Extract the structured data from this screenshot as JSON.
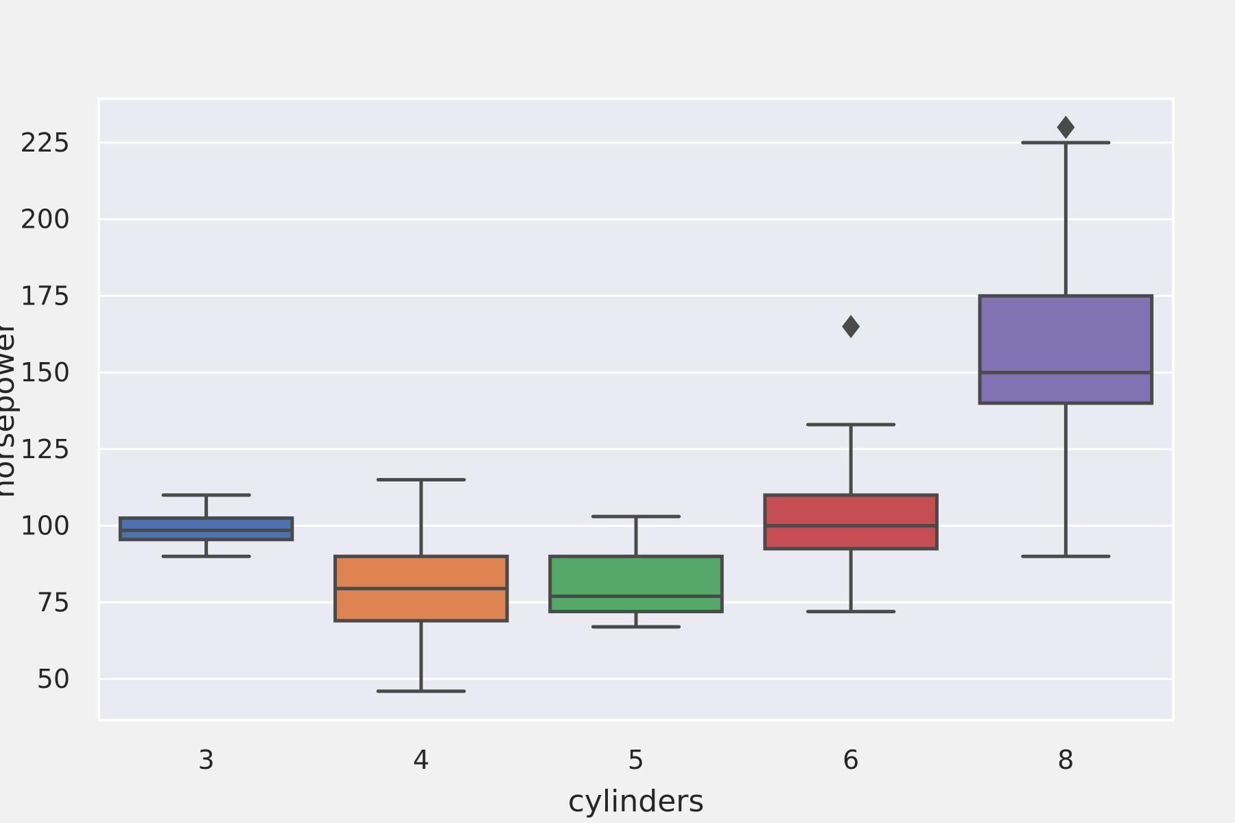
{
  "chart_data": {
    "type": "box",
    "xlabel": "cylinders",
    "ylabel": "horsepower",
    "ylim": [
      36,
      238
    ],
    "yticks": [
      50,
      75,
      100,
      125,
      150,
      175,
      200,
      225
    ],
    "grid": true,
    "categories": [
      "3",
      "4",
      "5",
      "6",
      "8"
    ],
    "boxes": [
      {
        "category": "3",
        "whisker_low": 90,
        "q1": 95.5,
        "median": 98.5,
        "q3": 102.5,
        "whisker_high": 110,
        "outliers": [],
        "color": "#4c72b0"
      },
      {
        "category": "4",
        "whisker_low": 46,
        "q1": 69,
        "median": 79.5,
        "q3": 90,
        "whisker_high": 115,
        "outliers": [],
        "color": "#dd8452"
      },
      {
        "category": "5",
        "whisker_low": 67,
        "q1": 72,
        "median": 77,
        "q3": 90,
        "whisker_high": 103,
        "outliers": [],
        "color": "#55a868"
      },
      {
        "category": "6",
        "whisker_low": 72,
        "q1": 92.5,
        "median": 100,
        "q3": 110,
        "whisker_high": 133,
        "outliers": [
          165
        ],
        "color": "#c44e52"
      },
      {
        "category": "8",
        "whisker_low": 90,
        "q1": 140,
        "median": 150,
        "q3": 175,
        "whisker_high": 225,
        "outliers": [
          230
        ],
        "color": "#8172b3"
      }
    ],
    "colors": {
      "plot_background": "#eaeaf2",
      "grid": "#ffffff",
      "line": "#4a4a4a"
    }
  }
}
